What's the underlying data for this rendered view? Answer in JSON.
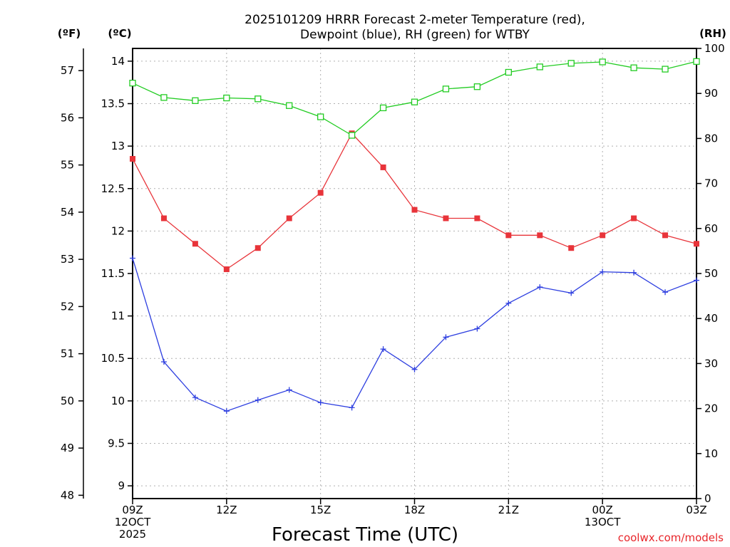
{
  "chart_data": {
    "type": "line",
    "title_lines": [
      "2025101209 HRRR Forecast 2-meter Temperature (red),",
      "Dewpoint (blue), RH (green) for WTBY"
    ],
    "xlabel": "Forecast Time (UTC)",
    "credit": "coolwx.com/models",
    "units": {
      "fahrenheit": "(ºF)",
      "celsius": "(ºC)",
      "rh": "(RH)"
    },
    "x_hours": [
      0,
      1,
      2,
      3,
      4,
      5,
      6,
      7,
      8,
      9,
      10,
      11,
      12,
      13,
      14,
      15,
      16,
      17,
      18
    ],
    "x_ticks": [
      {
        "hour": 0,
        "lines": [
          "09Z",
          "12OCT",
          "2025"
        ]
      },
      {
        "hour": 3,
        "lines": [
          "12Z"
        ]
      },
      {
        "hour": 6,
        "lines": [
          "15Z"
        ]
      },
      {
        "hour": 9,
        "lines": [
          "18Z"
        ]
      },
      {
        "hour": 12,
        "lines": [
          "21Z"
        ]
      },
      {
        "hour": 15,
        "lines": [
          "00Z",
          "13OCT"
        ]
      },
      {
        "hour": 18,
        "lines": [
          "03Z"
        ]
      }
    ],
    "celsius_axis": {
      "min": 8.85,
      "max": 14.15,
      "ticks": [
        "9",
        "9.5",
        "10",
        "10.5",
        "11",
        "11.5",
        "12",
        "12.5",
        "13",
        "13.5",
        "14"
      ]
    },
    "fahrenheit_axis": {
      "min": 47.93,
      "max": 57.47,
      "ticks": [
        "48",
        "49",
        "50",
        "51",
        "52",
        "53",
        "54",
        "55",
        "56",
        "57"
      ]
    },
    "rh_axis": {
      "min": 0,
      "max": 100,
      "ticks": [
        "0",
        "10",
        "20",
        "30",
        "40",
        "50",
        "60",
        "70",
        "80",
        "90",
        "100"
      ]
    },
    "series": [
      {
        "name": "Temperature",
        "axis": "celsius",
        "color": "#e8343a",
        "marker": "filled-square",
        "values": [
          12.85,
          12.15,
          11.85,
          11.55,
          11.8,
          12.15,
          12.45,
          13.15,
          12.75,
          12.25,
          12.15,
          12.15,
          11.95,
          11.95,
          11.8,
          11.95,
          12.15,
          11.95,
          11.85
        ]
      },
      {
        "name": "Dewpoint",
        "axis": "celsius",
        "color": "#2e3fe0",
        "marker": "plus",
        "values": [
          11.68,
          10.46,
          10.04,
          9.88,
          10.01,
          10.13,
          9.98,
          9.92,
          10.61,
          10.37,
          10.75,
          10.85,
          11.15,
          11.34,
          11.27,
          11.52,
          11.51,
          11.28,
          11.42
        ]
      },
      {
        "name": "RH",
        "axis": "rh",
        "color": "#22cc22",
        "marker": "open-square",
        "values": [
          92.3,
          89.1,
          88.4,
          89.0,
          88.8,
          87.3,
          84.8,
          80.7,
          86.8,
          88.1,
          91.0,
          91.5,
          94.7,
          95.9,
          96.7,
          97.0,
          95.7,
          95.4,
          97.1
        ]
      }
    ]
  }
}
